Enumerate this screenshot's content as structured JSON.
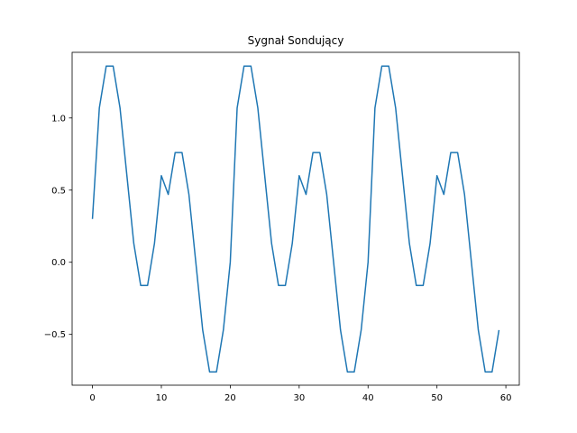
{
  "chart_data": {
    "type": "line",
    "title": "Sygnał Sondujący",
    "xlabel": "",
    "ylabel": "",
    "xlim": [
      -2.95,
      61.95
    ],
    "ylim": [
      -0.852,
      1.455
    ],
    "xticks": [
      0,
      10,
      20,
      30,
      40,
      50,
      60
    ],
    "xtick_labels": [
      "0",
      "10",
      "20",
      "30",
      "40",
      "50",
      "60"
    ],
    "yticks": [
      -0.5,
      0.0,
      0.5,
      1.0
    ],
    "ytick_labels": [
      "−0.5",
      "0.0",
      "0.5",
      "1.0"
    ],
    "grid": false,
    "color": "#1f77b4",
    "series": [
      {
        "x": [
          0,
          1,
          2,
          3,
          4,
          5,
          6,
          7,
          8,
          9,
          10,
          11,
          12,
          13,
          14,
          15,
          16,
          17,
          18,
          19,
          20,
          21,
          22,
          23,
          24,
          25,
          26,
          27,
          28,
          29,
          30,
          31,
          32,
          33,
          34,
          35,
          36,
          37,
          38,
          39,
          40,
          41,
          42,
          43,
          44,
          45,
          46,
          47,
          48,
          49,
          50,
          51,
          52,
          53,
          54,
          55,
          56,
          57,
          58,
          59
        ],
        "values": [
          0.3,
          1.07,
          1.36,
          1.36,
          1.07,
          0.6,
          0.13,
          -0.16,
          -0.16,
          0.13,
          0.6,
          0.47,
          0.76,
          0.76,
          0.47,
          0.0,
          -0.47,
          -0.76,
          -0.76,
          -0.47,
          0.0,
          1.07,
          1.36,
          1.36,
          1.07,
          0.6,
          0.13,
          -0.16,
          -0.16,
          0.13,
          0.6,
          0.47,
          0.76,
          0.76,
          0.47,
          0.0,
          -0.47,
          -0.76,
          -0.76,
          -0.47,
          0.0,
          1.07,
          1.36,
          1.36,
          1.07,
          0.6,
          0.13,
          -0.16,
          -0.16,
          0.13,
          0.6,
          0.47,
          0.76,
          0.76,
          0.47,
          0.0,
          -0.47,
          -0.76,
          -0.76,
          -0.47
        ]
      }
    ]
  }
}
